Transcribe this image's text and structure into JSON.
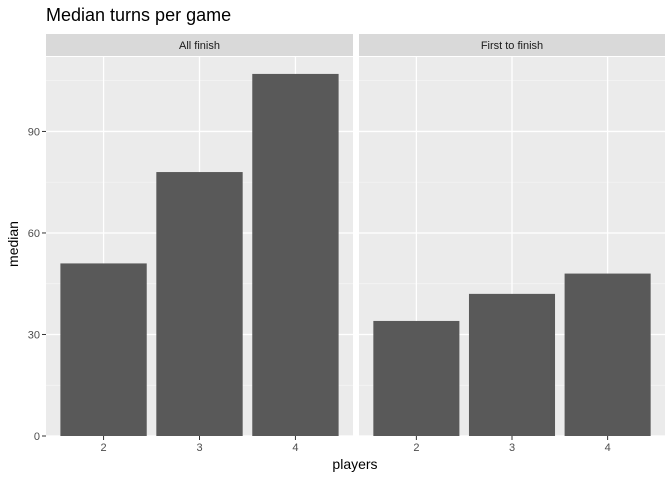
{
  "chart_data": {
    "type": "bar",
    "title": "Median turns per game",
    "xlabel": "players",
    "ylabel": "median",
    "categories": [
      "2",
      "3",
      "4"
    ],
    "ylim": [
      0,
      112
    ],
    "yticks": [
      0,
      30,
      60,
      90
    ],
    "grid": true,
    "bar_color": "#595959",
    "panel_background": "#ebebeb",
    "strip_background": "#d9d9d9",
    "facets": [
      {
        "label": "All finish",
        "values": [
          51,
          78,
          107
        ]
      },
      {
        "label": "First to finish",
        "values": [
          34,
          42,
          48
        ]
      }
    ]
  }
}
